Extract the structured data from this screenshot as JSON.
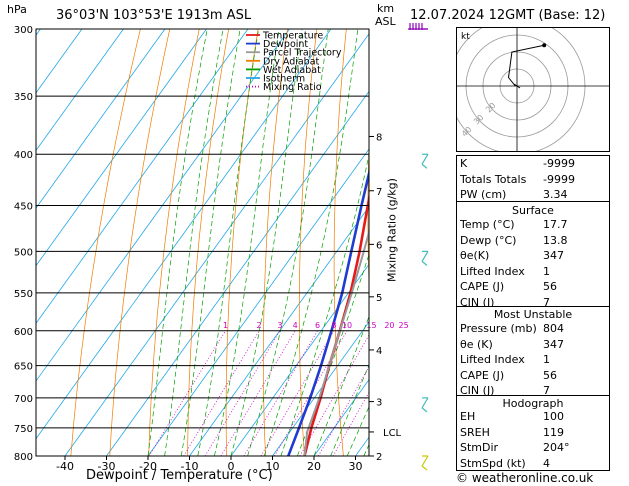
{
  "header": {
    "pressure_unit": "hPa",
    "location": "36°03'N  103°53'E  1913m  ASL",
    "km_label": "km",
    "asl_label": "ASL",
    "datetime": "12.07.2024  12GMT  (Base: 12)"
  },
  "footer": {
    "x_title": "Dewpoint / Temperature (°C)",
    "copyright": "© weatheronline.co.uk"
  },
  "y2_title": "Mixing Ratio (g/kg)",
  "chart_data": {
    "type": "line",
    "title": "",
    "xlabel": "Dewpoint / Temperature (°C)",
    "ylabel": "hPa",
    "xlim": [
      -45,
      35
    ],
    "ylim": [
      800,
      300
    ],
    "y_scale": "log",
    "grid": true,
    "x_ticks": [
      -40,
      -30,
      -20,
      -10,
      0,
      10,
      20,
      30
    ],
    "pressure_levels": [
      300,
      350,
      400,
      450,
      500,
      550,
      600,
      650,
      700,
      750,
      800
    ],
    "km_ticks": [
      {
        "p": 800,
        "label": "2"
      },
      {
        "p": 706,
        "label": "3"
      },
      {
        "p": 627,
        "label": "4"
      },
      {
        "p": 555,
        "label": "5"
      },
      {
        "p": 492,
        "label": "6"
      },
      {
        "p": 435,
        "label": "7"
      },
      {
        "p": 384,
        "label": "8"
      }
    ],
    "lcl": {
      "p": 757,
      "label": "LCL"
    },
    "mixing_ratio_labels": [
      "1",
      "2",
      "3",
      "4",
      "6",
      "8",
      "10",
      "15",
      "20",
      "25"
    ],
    "mixing_ratios": [
      1,
      2,
      3,
      4,
      6,
      8,
      10,
      15,
      20,
      25
    ],
    "legend": {
      "placement": "top-left",
      "entries": [
        {
          "name": "Temperature",
          "color": "#e41a1c",
          "style": "solid"
        },
        {
          "name": "Dewpoint",
          "color": "#1f3bd1",
          "style": "solid"
        },
        {
          "name": "Parcel Trajectory",
          "color": "#999999",
          "style": "solid"
        },
        {
          "name": "Dry Adiabat",
          "color": "#f07c00",
          "style": "solid"
        },
        {
          "name": "Wet Adiabat",
          "color": "#00a000",
          "style": "solid"
        },
        {
          "name": "Isotherm",
          "color": "#22a7e8",
          "style": "solid"
        },
        {
          "name": "Mixing Ratio",
          "color": "#d000c8",
          "style": "dotted"
        }
      ]
    },
    "series": [
      {
        "name": "Temperature",
        "color": "#e41a1c",
        "points": [
          [
            17.7,
            800
          ],
          [
            14.5,
            750
          ],
          [
            11.5,
            700
          ],
          [
            8.0,
            650
          ],
          [
            4.5,
            600
          ],
          [
            0.5,
            550
          ],
          [
            -4.5,
            500
          ],
          [
            -10.5,
            450
          ],
          [
            -17.0,
            400
          ],
          [
            -24.5,
            350
          ]
        ]
      },
      {
        "name": "Dewpoint",
        "color": "#1f3bd1",
        "points": [
          [
            13.8,
            800
          ],
          [
            11.5,
            750
          ],
          [
            9.0,
            700
          ],
          [
            6.0,
            650
          ],
          [
            2.5,
            600
          ],
          [
            -1.5,
            550
          ],
          [
            -6.5,
            500
          ],
          [
            -12.0,
            450
          ],
          [
            -18.0,
            400
          ],
          [
            -25.5,
            350
          ]
        ]
      },
      {
        "name": "Parcel Trajectory",
        "color": "#999999",
        "points": [
          [
            17.7,
            800
          ],
          [
            14.2,
            757
          ],
          [
            11.2,
            700
          ],
          [
            8.0,
            650
          ],
          [
            4.5,
            600
          ],
          [
            0.8,
            550
          ],
          [
            -3.5,
            500
          ],
          [
            -8.5,
            450
          ],
          [
            -14.0,
            400
          ],
          [
            -20.5,
            350
          ]
        ]
      }
    ],
    "wind_barb_pressures": [
      300,
      400,
      500,
      700,
      800
    ]
  },
  "hodograph": {
    "units_label": "kt",
    "ring_labels": [
      "40",
      "30",
      "20"
    ],
    "trace": [
      [
        -1,
        0
      ],
      [
        -5,
        5
      ],
      [
        -3,
        20
      ],
      [
        16,
        24
      ]
    ]
  },
  "indices": {
    "rows": [
      {
        "k": "K",
        "v": "-9999"
      },
      {
        "k": "Totals Totals",
        "v": "-9999"
      },
      {
        "k": "PW (cm)",
        "v": "3.34"
      }
    ]
  },
  "surface": {
    "title": "Surface",
    "rows": [
      {
        "k": "Temp (°C)",
        "v": "17.7"
      },
      {
        "k": "Dewp (°C)",
        "v": "13.8"
      },
      {
        "k": "θe(K)",
        "v": "347"
      },
      {
        "k": "Lifted Index",
        "v": "1"
      },
      {
        "k": "CAPE (J)",
        "v": "56"
      },
      {
        "k": "CIN (J)",
        "v": "7"
      }
    ]
  },
  "unstable": {
    "title": "Most Unstable",
    "rows": [
      {
        "k": "Pressure (mb)",
        "v": "804"
      },
      {
        "k": "θe (K)",
        "v": "347"
      },
      {
        "k": "Lifted Index",
        "v": "1"
      },
      {
        "k": "CAPE (J)",
        "v": "56"
      },
      {
        "k": "CIN (J)",
        "v": "7"
      }
    ]
  },
  "hodo_stats": {
    "title": "Hodograph",
    "rows": [
      {
        "k": "EH",
        "v": "100"
      },
      {
        "k": "SREH",
        "v": "119"
      },
      {
        "k": "StmDir",
        "v": "204°"
      },
      {
        "k": "StmSpd (kt)",
        "v": "4"
      }
    ]
  },
  "colors": {
    "temperature": "#e41a1c",
    "dewpoint": "#1f3bd1",
    "parcel": "#999999",
    "dry_adiabat": "#f07c00",
    "wet_adiabat": "#00a000",
    "isotherm": "#22a7e8",
    "mixing_ratio": "#d000c8",
    "wind_barb": "#44bbbb"
  }
}
